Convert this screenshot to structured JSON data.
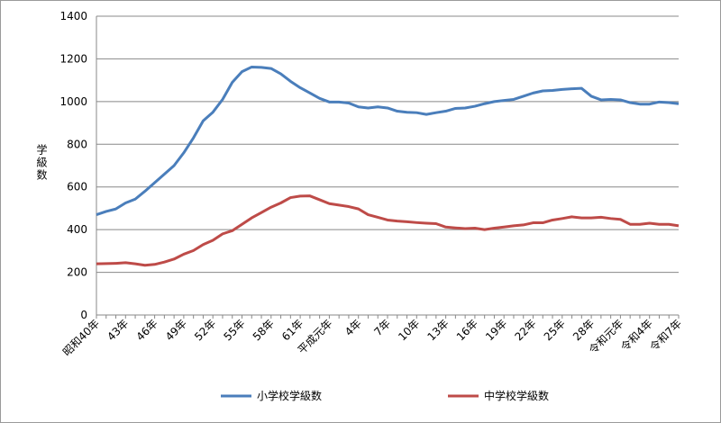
{
  "chart_data": {
    "type": "line",
    "y_label": "学級数",
    "categories": [
      "昭和40年",
      null,
      null,
      "43年",
      null,
      null,
      "46年",
      null,
      null,
      "49年",
      null,
      null,
      "52年",
      null,
      null,
      "55年",
      null,
      null,
      "58年",
      null,
      null,
      "61年",
      null,
      null,
      "平成元年",
      null,
      null,
      "4年",
      null,
      null,
      "7年",
      null,
      null,
      "10年",
      null,
      null,
      "13年",
      null,
      null,
      "16年",
      null,
      null,
      "19年",
      null,
      null,
      "22年",
      null,
      null,
      "25年",
      null,
      null,
      "28年",
      null,
      null,
      "令和元年",
      null,
      null,
      "令和4年",
      null,
      null,
      "令和7年"
    ],
    "series": [
      {
        "name": "小学校学級数",
        "color": "#4a7ebb",
        "values": [
          470,
          485,
          497,
          525,
          543,
          580,
          620,
          660,
          700,
          760,
          830,
          910,
          950,
          1010,
          1090,
          1140,
          1162,
          1160,
          1155,
          1130,
          1095,
          1065,
          1040,
          1015,
          998,
          998,
          993,
          975,
          970,
          975,
          970,
          955,
          950,
          948,
          940,
          948,
          955,
          968,
          970,
          978,
          990,
          1000,
          1005,
          1010,
          1025,
          1040,
          1050,
          1052,
          1057,
          1060,
          1062,
          1025,
          1008,
          1010,
          1008,
          995,
          988,
          988,
          998,
          995,
          990
        ]
      },
      {
        "name": "中学校学級数",
        "color": "#be4b48",
        "values": [
          240,
          241,
          242,
          245,
          240,
          233,
          237,
          248,
          262,
          285,
          302,
          330,
          350,
          380,
          395,
          425,
          455,
          480,
          505,
          525,
          550,
          557,
          558,
          540,
          522,
          515,
          508,
          497,
          470,
          458,
          445,
          440,
          437,
          433,
          430,
          428,
          412,
          408,
          405,
          407,
          400,
          407,
          412,
          418,
          422,
          432,
          432,
          445,
          452,
          460,
          455,
          455,
          458,
          452,
          448,
          425,
          425,
          430,
          425,
          425,
          418
        ]
      }
    ],
    "ylim": [
      0,
      1400
    ],
    "yticks": [
      0,
      200,
      400,
      600,
      800,
      1000,
      1200,
      1400
    ],
    "grid": true,
    "legend": "bottom"
  }
}
